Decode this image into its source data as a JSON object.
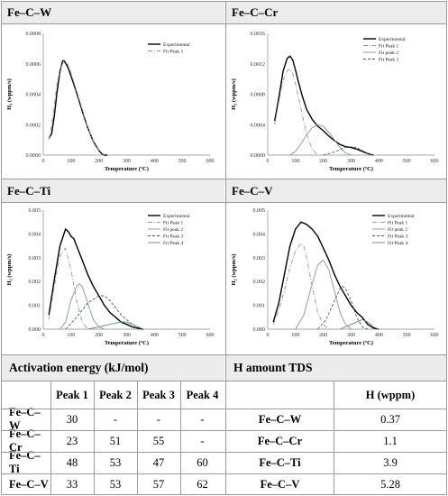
{
  "chart_data": [
    {
      "type": "line",
      "title": "Fe–C–W",
      "xlabel": "Temperature (ºC)",
      "ylabel": "H₂ (wppm/s)",
      "xlim": [
        0,
        600
      ],
      "ylim": [
        0,
        0.0008
      ],
      "xticks": [
        "0",
        "100",
        "200",
        "300",
        "400",
        "500",
        "600"
      ],
      "yticks": [
        "0.0000",
        "0.0002",
        "0.0004",
        "0.0006",
        "0.0008"
      ],
      "legend": [
        "Experimental",
        "Fit Peak 1"
      ],
      "series": [
        {
          "name": "Experimental",
          "style": "solid",
          "color": "#000000",
          "x": [
            20,
            30,
            40,
            50,
            60,
            70,
            75,
            80,
            90,
            100,
            120,
            140,
            160,
            180,
            200,
            210,
            220,
            230
          ],
          "y": [
            0.00011,
            0.00014,
            0.00026,
            0.00042,
            0.00055,
            0.00062,
            0.00062,
            0.000605,
            0.00057,
            0.00052,
            0.00041,
            0.00029,
            0.00018,
            9e-05,
            3e-05,
            1e-05,
            0.0,
            0.0
          ]
        },
        {
          "name": "Fit Peak 1",
          "style": "dashdot",
          "color": "#8a9aa8",
          "x": [
            20,
            30,
            40,
            50,
            60,
            70,
            80,
            90,
            100,
            120,
            140,
            160,
            180,
            200,
            220
          ],
          "y": [
            0.0001,
            0.0002,
            0.00034,
            0.00047,
            0.00056,
            0.0006,
            0.00061,
            0.00059,
            0.00054,
            0.00042,
            0.0003,
            0.00018,
            9e-05,
            3e-05,
            0.0
          ]
        }
      ]
    },
    {
      "type": "line",
      "title": "Fe–C–Cr",
      "xlabel": "Temperature (ºC)",
      "ylabel": "H₂ (wppm/s)",
      "xlim": [
        0,
        600
      ],
      "ylim": [
        0,
        0.0016
      ],
      "xticks": [
        "0",
        "100",
        "200",
        "300",
        "400",
        "500",
        "600"
      ],
      "yticks": [
        "0.0000",
        "0.0004",
        "0.0008",
        "0.0012",
        "0.0016"
      ],
      "legend": [
        "Experimental",
        "Fit Peak 1",
        "Fit peak 2",
        "Fit Peak 3"
      ],
      "series": [
        {
          "name": "Experimental",
          "style": "solid",
          "color": "#000000",
          "x": [
            25,
            40,
            55,
            70,
            80,
            90,
            100,
            110,
            125,
            140,
            160,
            180,
            200,
            220,
            240,
            260,
            280,
            300,
            320,
            340,
            360,
            380
          ],
          "y": [
            0.00045,
            0.00075,
            0.0011,
            0.00127,
            0.0013,
            0.00125,
            0.00112,
            0.00097,
            0.00077,
            0.0006,
            0.00047,
            0.00038,
            0.00032,
            0.00025,
            0.00019,
            0.00014,
            0.00011,
            0.0001,
            8e-05,
            5e-05,
            2e-05,
            0.0
          ]
        },
        {
          "name": "Fit Peak 1",
          "style": "dashdot",
          "color": "#8a9aa8",
          "x": [
            25,
            40,
            55,
            70,
            80,
            90,
            100,
            120,
            140,
            160,
            180
          ],
          "y": [
            0.0004,
            0.0007,
            0.00098,
            0.00111,
            0.00113,
            0.00107,
            0.00094,
            0.0006,
            0.00028,
            8e-05,
            0.0
          ]
        },
        {
          "name": "Fit peak 2",
          "style": "solid",
          "color": "#7f9e8e",
          "x": [
            80,
            100,
            120,
            140,
            160,
            180,
            200,
            220,
            240,
            260,
            280,
            300
          ],
          "y": [
            0.0,
            5e-05,
            0.00015,
            0.00027,
            0.00036,
            0.0004,
            0.00038,
            0.0003,
            0.0002,
            0.0001,
            3e-05,
            0.0
          ]
        },
        {
          "name": "Fit Peak 3",
          "style": "dashed",
          "color": "#4a5a6a",
          "x": [
            200,
            240,
            280,
            300,
            320,
            340,
            360,
            380
          ],
          "y": [
            0.0,
            4e-05,
            0.0001,
            0.00011,
            0.0001,
            6e-05,
            2e-05,
            0.0
          ]
        }
      ]
    },
    {
      "type": "line",
      "title": "Fe–C–Ti",
      "xlabel": "Temperature (ºC)",
      "ylabel": "H₂ (wppm/s)",
      "xlim": [
        0,
        600
      ],
      "ylim": [
        0,
        0.005
      ],
      "xticks": [
        "0",
        "100",
        "200",
        "300",
        "400",
        "500",
        "600"
      ],
      "yticks": [
        "0.000",
        "0.001",
        "0.002",
        "0.003",
        "0.004",
        "0.005"
      ],
      "legend": [
        "Experimental",
        "Fit Peak 1",
        "Fit peak 2",
        "Fit Peak 3",
        "Fit Peak 4"
      ],
      "series": [
        {
          "name": "Experimental",
          "style": "solid",
          "color": "#000000",
          "x": [
            20,
            40,
            60,
            80,
            90,
            100,
            110,
            120,
            140,
            160,
            180,
            200,
            220,
            240,
            260,
            280,
            300,
            320,
            340,
            360
          ],
          "y": [
            0.0006,
            0.0021,
            0.0035,
            0.0042,
            0.0041,
            0.0039,
            0.0038,
            0.0035,
            0.0029,
            0.0023,
            0.0018,
            0.0014,
            0.001,
            0.0007,
            0.0005,
            0.0003,
            0.0002,
            0.0001,
            4e-05,
            0.0
          ]
        },
        {
          "name": "Fit Peak 1",
          "style": "dashdot",
          "color": "#8a9aa8",
          "x": [
            20,
            40,
            60,
            80,
            100,
            120,
            140,
            160
          ],
          "y": [
            0.0004,
            0.0018,
            0.0031,
            0.0034,
            0.0025,
            0.0012,
            0.0003,
            0.0
          ]
        },
        {
          "name": "Fit peak 2",
          "style": "solid",
          "color": "#7f9e8e",
          "x": [
            60,
            80,
            100,
            120,
            130,
            140,
            160,
            180,
            200,
            220
          ],
          "y": [
            0.0,
            0.0003,
            0.0012,
            0.0018,
            0.0019,
            0.0018,
            0.0011,
            0.0004,
            0.0001,
            0.0
          ]
        },
        {
          "name": "Fit Peak 3",
          "style": "dashed",
          "color": "#4a5a6a",
          "x": [
            80,
            120,
            160,
            200,
            220,
            240,
            280,
            320,
            360
          ],
          "y": [
            0.0,
            0.0005,
            0.0011,
            0.0014,
            0.0014,
            0.0012,
            0.0006,
            0.0002,
            0.0
          ]
        },
        {
          "name": "Fit Peak 4",
          "style": "solid",
          "color": "#6e8a7e",
          "x": [
            160,
            200,
            240,
            280,
            300,
            320,
            360
          ],
          "y": [
            0.0,
            0.0001,
            0.0002,
            0.0003,
            0.0003,
            0.0002,
            0.0
          ]
        }
      ]
    },
    {
      "type": "line",
      "title": "Fe–C–V",
      "xlabel": "Temperature (ºC)",
      "ylabel": "H₂ (wppm/s)",
      "xlim": [
        0,
        600
      ],
      "ylim": [
        0,
        0.005
      ],
      "xticks": [
        "0",
        "100",
        "200",
        "300",
        "400",
        "500",
        "600"
      ],
      "yticks": [
        "0.000",
        "0.001",
        "0.002",
        "0.003",
        "0.004",
        "0.005"
      ],
      "legend": [
        "Experimental",
        "Fit Peak 1",
        "Fit peak 2",
        "Fit Peak 3",
        "Fit Peak 4"
      ],
      "series": [
        {
          "name": "Experimental",
          "style": "solid",
          "color": "#000000",
          "x": [
            20,
            40,
            60,
            80,
            100,
            120,
            140,
            160,
            180,
            200,
            220,
            240,
            260,
            280,
            300,
            320,
            340,
            360,
            380,
            400
          ],
          "y": [
            0.0003,
            0.0011,
            0.0023,
            0.0035,
            0.0042,
            0.0045,
            0.0044,
            0.0042,
            0.0039,
            0.0034,
            0.0029,
            0.0023,
            0.0018,
            0.0014,
            0.001,
            0.0007,
            0.0005,
            0.0002,
            5e-05,
            0.0
          ]
        },
        {
          "name": "Fit Peak 1",
          "style": "dashdot",
          "color": "#8a9aa8",
          "x": [
            20,
            40,
            60,
            80,
            100,
            120,
            130,
            140,
            160,
            180,
            200,
            220
          ],
          "y": [
            0.0002,
            0.0008,
            0.0016,
            0.0026,
            0.0033,
            0.0036,
            0.0035,
            0.003,
            0.0018,
            0.0007,
            0.0002,
            0.0
          ]
        },
        {
          "name": "Fit peak 2",
          "style": "solid",
          "color": "#7f9e8e",
          "x": [
            100,
            130,
            160,
            180,
            200,
            220,
            240,
            260,
            280,
            300
          ],
          "y": [
            0.0,
            0.0006,
            0.0019,
            0.0027,
            0.0029,
            0.0025,
            0.0016,
            0.0007,
            0.0002,
            0.0
          ]
        },
        {
          "name": "Fit Peak 3",
          "style": "dashed",
          "color": "#4a5a6a",
          "x": [
            180,
            210,
            240,
            260,
            270,
            280,
            300,
            320,
            340,
            360
          ],
          "y": [
            0.0,
            0.0004,
            0.0012,
            0.0017,
            0.0018,
            0.0017,
            0.0012,
            0.0005,
            0.0001,
            0.0
          ]
        },
        {
          "name": "Fit Peak 4",
          "style": "solid",
          "color": "#6e8a7e",
          "x": [
            260,
            300,
            320,
            340,
            360,
            380,
            400
          ],
          "y": [
            0.0,
            0.0002,
            0.0003,
            0.0004,
            0.0003,
            0.0001,
            0.0
          ]
        }
      ]
    }
  ],
  "panels": {
    "w": "Fe–C–W",
    "cr": "Fe–C–Cr",
    "ti": "Fe–C–Ti",
    "v": "Fe–C–V"
  },
  "activation": {
    "title": "Activation energy (kJ/mol)",
    "columns": [
      "Peak 1",
      "Peak 2",
      "Peak 3",
      "Peak 4"
    ],
    "rows": [
      {
        "label": "Fe–C–W",
        "values": [
          "30",
          "-",
          "-",
          "-"
        ]
      },
      {
        "label": "Fe–C–Cr",
        "values": [
          "23",
          "51",
          "55",
          "-"
        ]
      },
      {
        "label": "Fe–C–Ti",
        "values": [
          "48",
          "53",
          "47",
          "60"
        ]
      },
      {
        "label": "Fe–C–V",
        "values": [
          "33",
          "53",
          "57",
          "62"
        ]
      }
    ]
  },
  "hamount": {
    "title": "H amount TDS",
    "column": "H (wppm)",
    "rows": [
      {
        "label": "Fe–C–W",
        "value": "0.37"
      },
      {
        "label": "Fe–C–Cr",
        "value": "1.1"
      },
      {
        "label": "Fe–C–Ti",
        "value": "3.9"
      },
      {
        "label": "Fe–C–V",
        "value": "5.28"
      }
    ]
  }
}
